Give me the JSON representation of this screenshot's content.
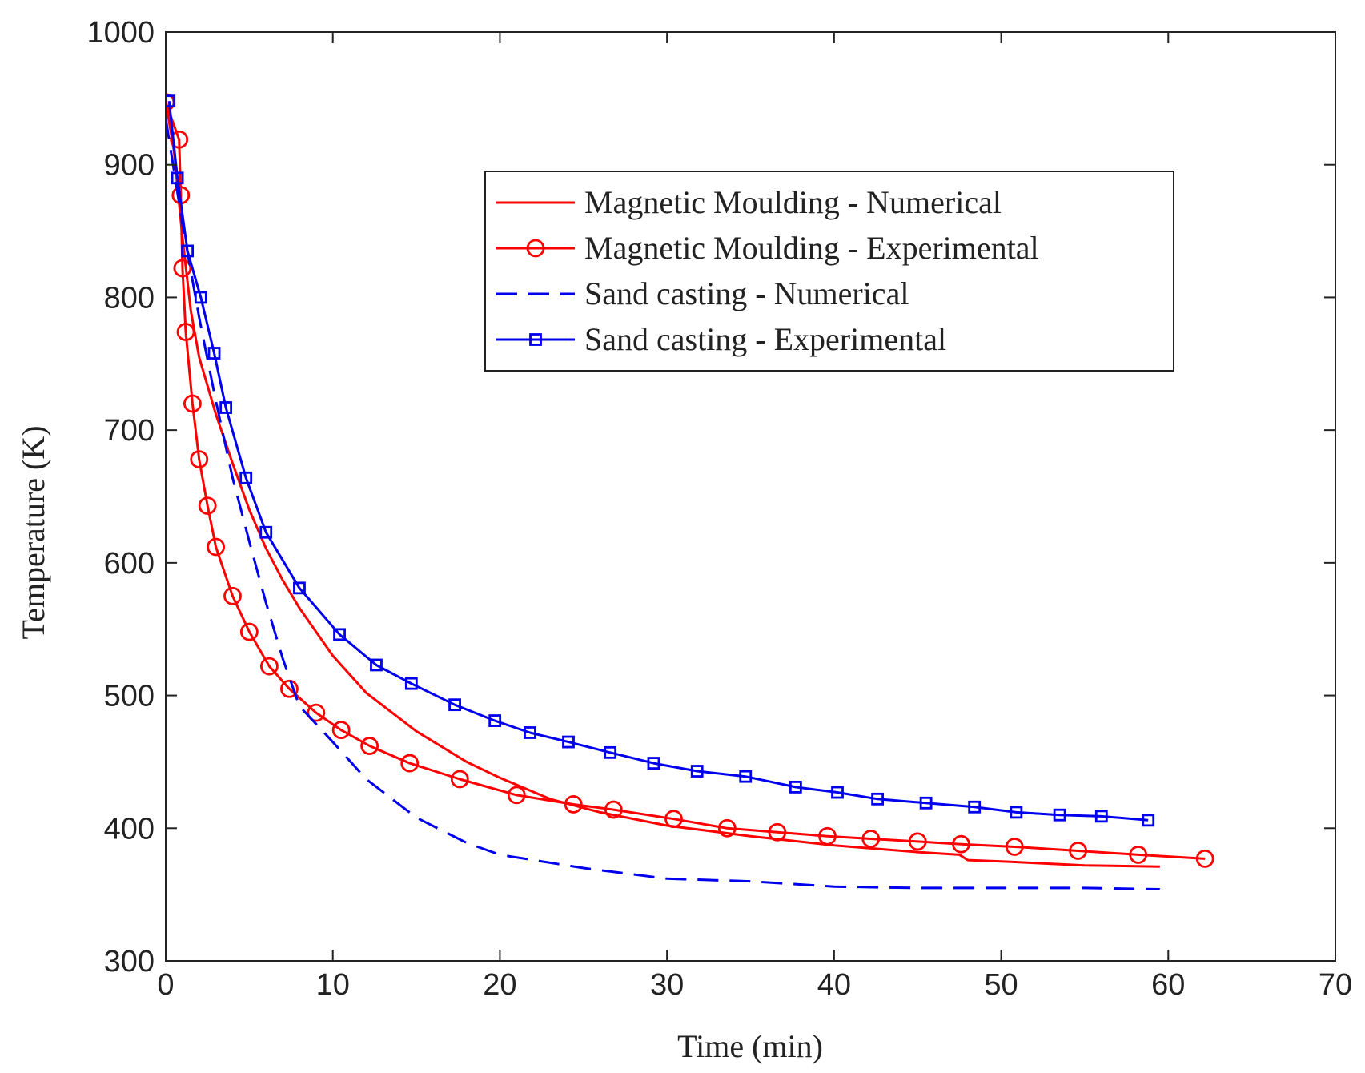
{
  "chart_data": {
    "type": "line",
    "xlabel": "Time (min)",
    "ylabel": "Temperature (K)",
    "xlim": [
      0,
      70
    ],
    "ylim": [
      300,
      1000
    ],
    "xticks": [
      "0",
      "10",
      "20",
      "30",
      "40",
      "50",
      "60",
      "70"
    ],
    "yticks": [
      "300",
      "400",
      "500",
      "600",
      "700",
      "800",
      "900",
      "1000"
    ],
    "grid": false,
    "legend_position": "top-right",
    "series": [
      {
        "name": "Magnetic Moulding - Numerical",
        "color": "#ff0000",
        "style": "solid",
        "marker": "none",
        "x": [
          0,
          0.5,
          1,
          1.5,
          2,
          3,
          4,
          5,
          6,
          7,
          8,
          10,
          12,
          15,
          18,
          20,
          23,
          26,
          30,
          35,
          40,
          45,
          47.5,
          48,
          50,
          55,
          59.5
        ],
        "y": [
          948,
          910,
          845,
          790,
          755,
          712,
          675,
          640,
          611,
          587,
          566,
          530,
          502,
          473,
          450,
          438,
          422,
          412,
          402,
          394,
          387,
          382,
          380,
          376,
          375,
          372,
          371
        ]
      },
      {
        "name": "Magnetic Moulding - Experimental",
        "color": "#ff0000",
        "style": "solid",
        "marker": "circle",
        "x": [
          0,
          0.8,
          0.9,
          1.0,
          1.2,
          1.6,
          2.0,
          2.5,
          3.0,
          4.0,
          5.0,
          6.2,
          7.4,
          9.0,
          10.5,
          12.2,
          14.6,
          17.6,
          21.0,
          24.4,
          26.8,
          30.4,
          33.6,
          36.6,
          39.6,
          42.2,
          45.0,
          47.6,
          50.8,
          54.6,
          58.2,
          62.2
        ],
        "y": [
          947,
          919,
          877,
          822,
          774,
          720,
          678,
          643,
          612,
          575,
          548,
          522,
          505,
          487,
          474,
          462,
          449,
          437,
          425,
          418,
          414,
          407,
          400,
          397,
          394,
          392,
          390,
          388,
          386,
          383,
          380,
          377
        ]
      },
      {
        "name": "Sand casting - Numerical",
        "color": "#0000ee",
        "style": "dashed",
        "marker": "none",
        "x": [
          0,
          1,
          2,
          3,
          4,
          5,
          6,
          7,
          8,
          10,
          12,
          15,
          18,
          20,
          25,
          30,
          35,
          40,
          45,
          50,
          55,
          59.5
        ],
        "y": [
          935,
          855,
          785,
          722,
          664,
          616,
          570,
          528,
          492,
          465,
          437,
          408,
          389,
          380,
          370,
          362,
          360,
          356,
          355,
          355,
          355,
          354
        ]
      },
      {
        "name": "Sand casting - Experimental",
        "color": "#0000ee",
        "style": "solid",
        "marker": "square",
        "x": [
          0.2,
          0.7,
          1.3,
          2.1,
          2.9,
          3.6,
          4.8,
          6.0,
          8.0,
          10.4,
          12.6,
          14.7,
          17.3,
          19.7,
          21.8,
          24.1,
          26.6,
          29.2,
          31.8,
          34.7,
          37.7,
          40.2,
          42.6,
          45.5,
          48.4,
          50.9,
          53.5,
          56.0,
          58.8
        ],
        "y": [
          948,
          890,
          835,
          800,
          758,
          717,
          664,
          623,
          581,
          546,
          523,
          509,
          493,
          481,
          472,
          465,
          457,
          449,
          443,
          439,
          431,
          427,
          422,
          419,
          416,
          412,
          410,
          409,
          406
        ]
      }
    ]
  }
}
